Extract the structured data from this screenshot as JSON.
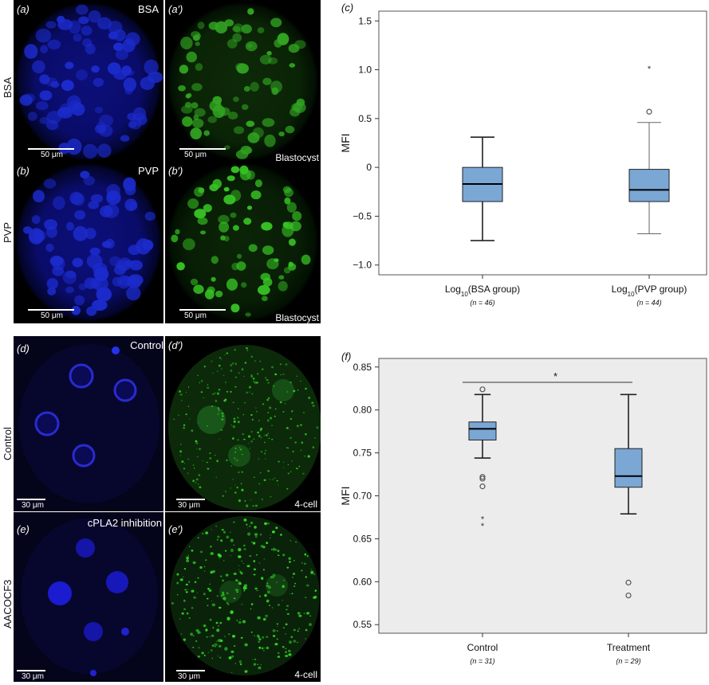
{
  "left_panels": {
    "a": {
      "tag": "(a)",
      "corner": "BSA",
      "scale": "50 μm",
      "row": "BSA"
    },
    "a2": {
      "tag": "(a′)",
      "stage": "Blastocyst",
      "scale": "50 μm"
    },
    "b": {
      "tag": "(b)",
      "corner": "PVP",
      "scale": "50 μm",
      "row": "PVP"
    },
    "b2": {
      "tag": "(b′)",
      "stage": "Blastocyst",
      "scale": "50 μm"
    },
    "d": {
      "tag": "(d)",
      "corner": "Control",
      "scale": "30 μm",
      "row": "Control"
    },
    "d2": {
      "tag": "(d′)",
      "stage": "4-cell",
      "scale": "30 μm"
    },
    "e": {
      "tag": "(e)",
      "corner": "cPLA2 inhibition",
      "scale": "30 μm",
      "row": "AACOCF3"
    },
    "e2": {
      "tag": "(e′)",
      "stage": "4-cell",
      "scale": "30 μm"
    }
  },
  "chart_data": [
    {
      "panel": "(c)",
      "type": "box",
      "ylabel": "MFI",
      "ylim": [
        -1.1,
        1.6
      ],
      "yticks": [
        "1.5",
        "1.0",
        "0.5",
        "0",
        "−0.5",
        "−1.0"
      ],
      "categories": [
        "Log10(BSA group)",
        "Log10(PVP group)"
      ],
      "n_labels": [
        "(n = 46)",
        "(n = 44)"
      ],
      "boxes": [
        {
          "min": -0.75,
          "q1": -0.35,
          "median": -0.17,
          "q3": 0.0,
          "max": 0.31,
          "outliers": [],
          "extremes": []
        },
        {
          "min": -0.68,
          "q1": -0.35,
          "median": -0.23,
          "q3": -0.02,
          "max": 0.46,
          "outliers": [
            0.57
          ],
          "extremes": [
            1.02
          ]
        }
      ],
      "colors": {
        "box": "#7ba7d4",
        "stroke": "#222222"
      }
    },
    {
      "panel": "(f)",
      "type": "box",
      "ylabel": "MFI",
      "ylim": [
        0.54,
        0.86
      ],
      "yticks": [
        "0.85",
        "0.80",
        "0.75",
        "0.70",
        "0.65",
        "0.60",
        "0.55"
      ],
      "categories": [
        "Control",
        "Treatment"
      ],
      "n_labels": [
        "(n = 31)",
        "(n = 29)"
      ],
      "significance": "*",
      "boxes": [
        {
          "min": 0.744,
          "q1": 0.765,
          "median": 0.778,
          "q3": 0.786,
          "max": 0.818,
          "outliers": [
            0.824,
            0.722,
            0.72,
            0.711
          ],
          "extremes": [
            0.674,
            0.666
          ]
        },
        {
          "min": 0.679,
          "q1": 0.71,
          "median": 0.723,
          "q3": 0.755,
          "max": 0.818,
          "outliers": [
            0.599,
            0.584
          ],
          "extremes": []
        }
      ],
      "colors": {
        "box": "#7ba7d4",
        "stroke": "#222222",
        "background": "#ececec"
      }
    }
  ]
}
